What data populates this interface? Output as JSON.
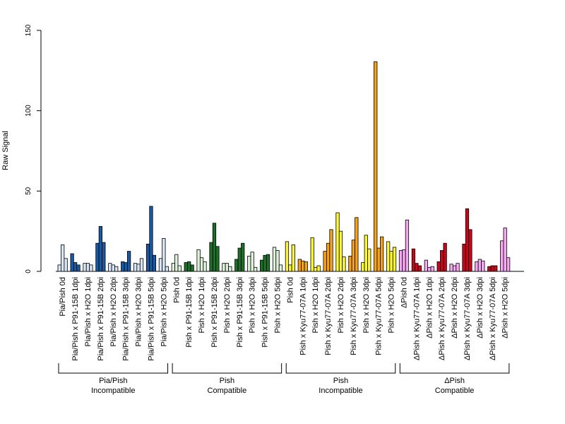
{
  "chart_data": {
    "type": "bar",
    "title": "",
    "xlabel": "",
    "ylabel": "Raw Signal",
    "ylim": [
      0,
      150
    ],
    "yticks": [
      0,
      50,
      100,
      150
    ],
    "grid": false,
    "legend": "none",
    "categories": [
      "Pia/Pish 0d",
      "Pia/Pish x P91-15B 1dpi",
      "Pia/Pish x H2O 1dpi",
      "Pia/Pish x P91-15B 2dpi",
      "Pia/Pish x H2O 2dpi",
      "Pia/Pish x P91-15B 3dpi",
      "Pia/Pish x H2O 3dpi",
      "Pia/Pish x P91-15B 5dpi",
      "Pia/Pish x H2O 5dpi",
      "Pish 0d",
      "Pish x P91-15B 1dpi",
      "Pish x H2O 1dpi",
      "Pish x P91-15B 2dpi",
      "Pish x H2O 2dpi",
      "Pish x P91-15B 3dpi",
      "Pish x H2O 3dpi",
      "Pish x P91-15B 5dpi",
      "Pish x H2O 5dpi",
      "Pish 0d",
      "Pish x Kyu77-07A 1dpi",
      "Pish x H2O 1dpi",
      "Pish x Kyu77-07A 2dpi",
      "Pish x H2O 2dpi",
      "Pish x Kyu77-07A 3dpi",
      "Pish x H2O 3dpi",
      "Pish x Kyu77-07A 5dpi",
      "Pish x H2O 5dpi",
      "ΔPish 0d",
      "ΔPish x Kyu77-07A 1dpi",
      "ΔPish x H2O 1dpi",
      "ΔPish x Kyu77-07A 2dpi",
      "ΔPish x H2O 2dpi",
      "ΔPish x Kyu77-07A 3dpi",
      "ΔPish x H2O 3dpi",
      "ΔPish x Kyu77-07A 5dpi",
      "ΔPish x H2O 5dpi"
    ],
    "values": [
      [
        4,
        16.5,
        8
      ],
      [
        11,
        5.5,
        4
      ],
      [
        5,
        5,
        4
      ],
      [
        17.5,
        28,
        18
      ],
      [
        5,
        4,
        3
      ],
      [
        6,
        5.5,
        12.5
      ],
      [
        5,
        4.5,
        8
      ],
      [
        17,
        40.5,
        10
      ],
      [
        8,
        20.5,
        3
      ],
      [
        5,
        10.5,
        3.5
      ],
      [
        5.5,
        6,
        4
      ],
      [
        13.5,
        8.5,
        6
      ],
      [
        18,
        30,
        15.5
      ],
      [
        5,
        5,
        3
      ],
      [
        7.5,
        14.5,
        17.5
      ],
      [
        9.5,
        12,
        2.5
      ],
      [
        7,
        10,
        10.5
      ],
      [
        15,
        13,
        4
      ],
      [
        18.5,
        4,
        16.5
      ],
      [
        7.5,
        6.5,
        6
      ],
      [
        21,
        2.5,
        3.5
      ],
      [
        12.5,
        17.5,
        26
      ],
      [
        36.5,
        25,
        9
      ],
      [
        9.5,
        19.5,
        33.5
      ],
      [
        5.5,
        22.5,
        14
      ],
      [
        130.5,
        14.5,
        21.5
      ],
      [
        18.5,
        12.5,
        15
      ],
      [
        13,
        13.5,
        32
      ],
      [
        14,
        5,
        3.5
      ],
      [
        7,
        2.5,
        3
      ],
      [
        6,
        13,
        17.5
      ],
      [
        4.5,
        3.5,
        5
      ],
      [
        17,
        39,
        26
      ],
      [
        6,
        7.5,
        6.5
      ],
      [
        3,
        3.5,
        3.5
      ],
      [
        19,
        27,
        8.5
      ]
    ],
    "series_colors": [
      "#d6e4f3",
      "#1a5aa3",
      "#d6e4f3",
      "#1a5aa3",
      "#d6e4f3",
      "#1a5aa3",
      "#d6e4f3",
      "#1a5aa3",
      "#d6e4f3",
      "#ddf0d8",
      "#1f6e2a",
      "#ddf0d8",
      "#1f6e2a",
      "#ddf0d8",
      "#1f6e2a",
      "#ddf0d8",
      "#1f6e2a",
      "#ddf0d8",
      "#fdf73a",
      "#f6a218",
      "#fdf73a",
      "#f6a218",
      "#fdf73a",
      "#f6a218",
      "#fdf73a",
      "#f6a218",
      "#fdf73a",
      "#f7a8f2",
      "#c8071b",
      "#f7a8f2",
      "#c8071b",
      "#f7a8f2",
      "#c8071b",
      "#f7a8f2",
      "#c8071b",
      "#f7a8f2"
    ],
    "groups": [
      {
        "line1": "Pia/Pish",
        "line2": "Incompatible",
        "start": 0,
        "end": 8
      },
      {
        "line1": "Pish",
        "line2": "Compatible",
        "start": 9,
        "end": 17
      },
      {
        "line1": "Pish",
        "line2": "Incompatible",
        "start": 18,
        "end": 26
      },
      {
        "line1": "ΔPish",
        "line2": "Compatible",
        "start": 27,
        "end": 35
      }
    ]
  }
}
